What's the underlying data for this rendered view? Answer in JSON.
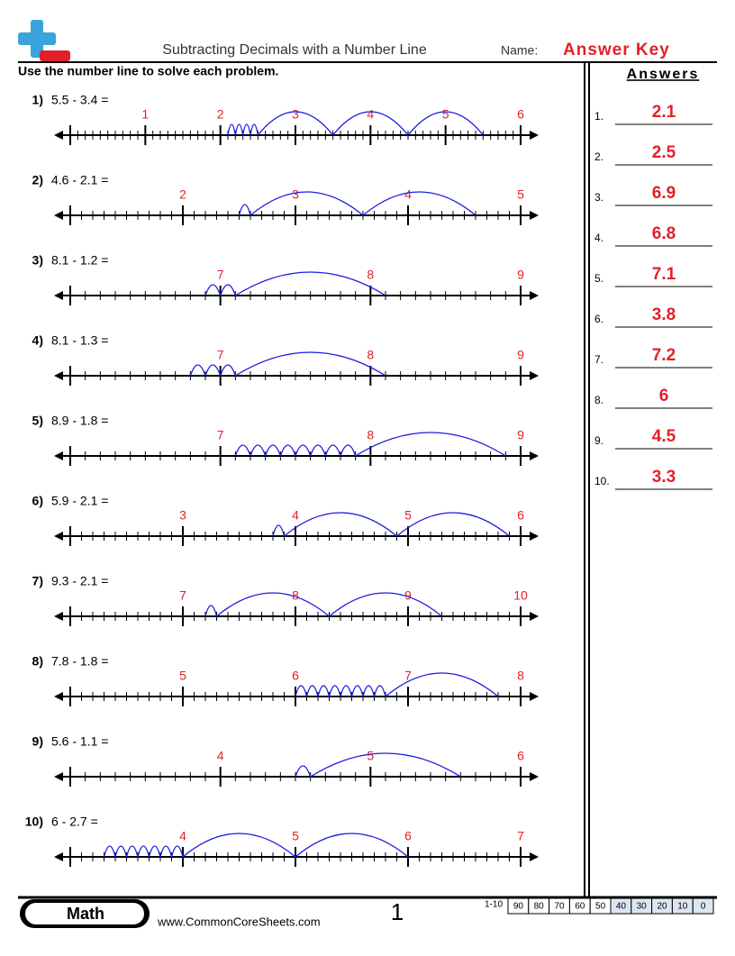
{
  "header": {
    "title": "Subtracting Decimals with a Number Line",
    "name_label": "Name:",
    "answer_key": "Answer Key",
    "instructions": "Use the number line to solve each problem."
  },
  "problems": [
    {
      "number": "1)",
      "expression": "5.5 - 3.4 =",
      "labels": [
        1,
        2,
        3,
        4,
        5,
        6
      ]
    },
    {
      "number": "2)",
      "expression": "4.6 - 2.1 =",
      "labels": [
        2,
        3,
        4,
        5
      ]
    },
    {
      "number": "3)",
      "expression": "8.1 - 1.2 =",
      "labels": [
        7,
        8,
        9
      ]
    },
    {
      "number": "4)",
      "expression": "8.1 - 1.3 =",
      "labels": [
        7,
        8,
        9
      ]
    },
    {
      "number": "5)",
      "expression": "8.9 - 1.8 =",
      "labels": [
        7,
        8,
        9
      ]
    },
    {
      "number": "6)",
      "expression": "5.9 - 2.1 =",
      "labels": [
        3,
        4,
        5,
        6
      ]
    },
    {
      "number": "7)",
      "expression": "9.3 - 2.1 =",
      "labels": [
        7,
        8,
        9,
        10
      ]
    },
    {
      "number": "8)",
      "expression": "7.8 - 1.8 =",
      "labels": [
        5,
        6,
        7,
        8
      ]
    },
    {
      "number": "9)",
      "expression": "5.6 - 1.1 =",
      "labels": [
        4,
        5,
        6
      ]
    },
    {
      "number": "10)",
      "expression": "6 - 2.7 =",
      "labels": [
        4,
        5,
        6,
        7
      ]
    }
  ],
  "answers": {
    "title": "Answers",
    "items": [
      {
        "number": "1.",
        "answer": "2.1"
      },
      {
        "number": "2.",
        "answer": "2.5"
      },
      {
        "number": "3.",
        "answer": "6.9"
      },
      {
        "number": "4.",
        "answer": "6.8"
      },
      {
        "number": "5.",
        "answer": "7.1"
      },
      {
        "number": "6.",
        "answer": "3.8"
      },
      {
        "number": "7.",
        "answer": "7.2"
      },
      {
        "number": "8.",
        "answer": "6"
      },
      {
        "number": "9.",
        "answer": "4.5"
      },
      {
        "number": "10.",
        "answer": "3.3"
      }
    ]
  },
  "footer": {
    "subject": "Math",
    "website": "www.CommonCoreSheets.com",
    "page": "1",
    "score_label": "1-10",
    "scores": [
      90,
      80,
      70,
      60,
      50,
      40,
      30,
      20,
      10,
      0
    ]
  }
}
